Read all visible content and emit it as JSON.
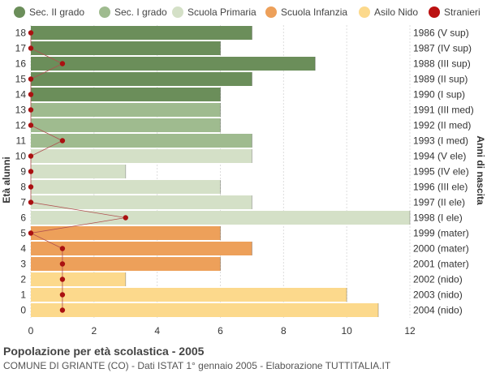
{
  "chart_data": {
    "type": "bar",
    "orientation": "horizontal",
    "title": "Popolazione per età scolastica - 2005",
    "subtitle": "COMUNE DI GRIANTE (CO) - Dati ISTAT 1° gennaio 2005 - Elaborazione TUTTITALIA.IT",
    "ylabel_left": "Età alunni",
    "ylabel_right": "Anni di nascita",
    "xlim": [
      0,
      12
    ],
    "xticks": [
      "0",
      "2",
      "4",
      "6",
      "8",
      "10",
      "12"
    ],
    "grid": true,
    "legend_position": "top",
    "legend": [
      {
        "name": "Sec. II grado",
        "color": "#6b8e5a"
      },
      {
        "name": "Sec. I grado",
        "color": "#9fbb8f"
      },
      {
        "name": "Scuola Primaria",
        "color": "#d4e0c7"
      },
      {
        "name": "Scuola Infanzia",
        "color": "#eda05a"
      },
      {
        "name": "Asilo Nido",
        "color": "#fcd98c"
      },
      {
        "name": "Stranieri",
        "color": "#bb1111"
      }
    ],
    "rows": [
      {
        "age": "18",
        "birth": "1986 (V sup)",
        "value": 7,
        "stranieri": 0,
        "group": 0
      },
      {
        "age": "17",
        "birth": "1987 (IV sup)",
        "value": 6,
        "stranieri": 0,
        "group": 0
      },
      {
        "age": "16",
        "birth": "1988 (III sup)",
        "value": 9,
        "stranieri": 1,
        "group": 0
      },
      {
        "age": "15",
        "birth": "1989 (II sup)",
        "value": 7,
        "stranieri": 0,
        "group": 0
      },
      {
        "age": "14",
        "birth": "1990 (I sup)",
        "value": 6,
        "stranieri": 0,
        "group": 0
      },
      {
        "age": "13",
        "birth": "1991 (III med)",
        "value": 6,
        "stranieri": 0,
        "group": 1
      },
      {
        "age": "12",
        "birth": "1992 (II med)",
        "value": 6,
        "stranieri": 0,
        "group": 1
      },
      {
        "age": "11",
        "birth": "1993 (I med)",
        "value": 7,
        "stranieri": 1,
        "group": 1
      },
      {
        "age": "10",
        "birth": "1994 (V ele)",
        "value": 7,
        "stranieri": 0,
        "group": 2
      },
      {
        "age": "9",
        "birth": "1995 (IV ele)",
        "value": 3,
        "stranieri": 0,
        "group": 2
      },
      {
        "age": "8",
        "birth": "1996 (III ele)",
        "value": 6,
        "stranieri": 0,
        "group": 2
      },
      {
        "age": "7",
        "birth": "1997 (II ele)",
        "value": 7,
        "stranieri": 0,
        "group": 2
      },
      {
        "age": "6",
        "birth": "1998 (I ele)",
        "value": 12,
        "stranieri": 3,
        "group": 2
      },
      {
        "age": "5",
        "birth": "1999 (mater)",
        "value": 6,
        "stranieri": 0,
        "group": 3
      },
      {
        "age": "4",
        "birth": "2000 (mater)",
        "value": 7,
        "stranieri": 1,
        "group": 3
      },
      {
        "age": "3",
        "birth": "2001 (mater)",
        "value": 6,
        "stranieri": 1,
        "group": 3
      },
      {
        "age": "2",
        "birth": "2002 (nido)",
        "value": 3,
        "stranieri": 1,
        "group": 4
      },
      {
        "age": "1",
        "birth": "2003 (nido)",
        "value": 10,
        "stranieri": 1,
        "group": 4
      },
      {
        "age": "0",
        "birth": "2004 (nido)",
        "value": 11,
        "stranieri": 1,
        "group": 4
      }
    ]
  }
}
